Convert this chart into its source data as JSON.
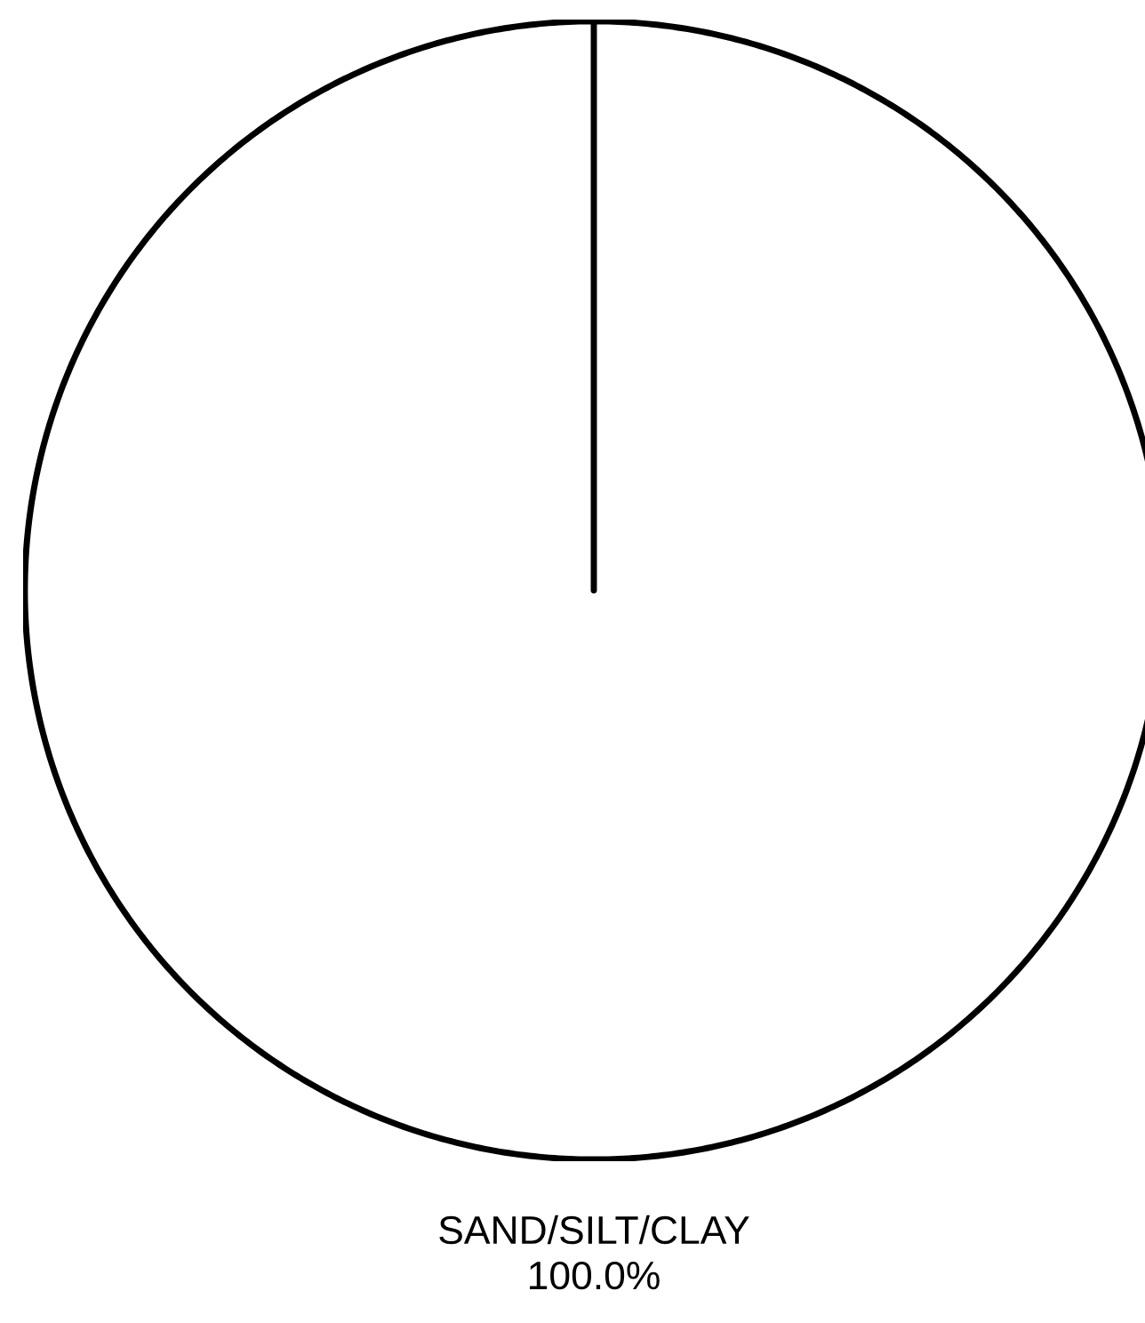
{
  "chart_data": {
    "type": "pie",
    "categories": [
      "SAND/SILT/CLAY"
    ],
    "values": [
      100
    ],
    "colors": [
      "#ffffff"
    ],
    "value_labels": [
      "100.0%"
    ]
  }
}
